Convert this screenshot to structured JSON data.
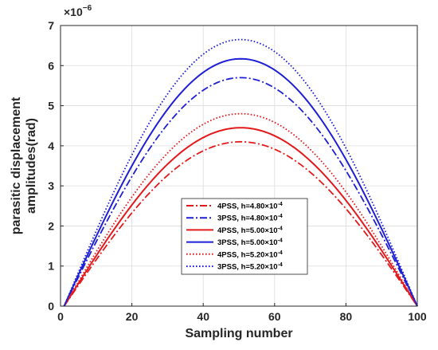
{
  "chart_data": {
    "type": "line",
    "title": "",
    "xlabel": "Sampling number",
    "ylabel_lines": [
      "parasitic displacement",
      "amplitudes(rad)"
    ],
    "y_scale_base": "×10",
    "y_scale_exponent": "−6",
    "xlim": [
      0,
      100
    ],
    "ylim": [
      0,
      7
    ],
    "xticks": [
      0,
      20,
      40,
      60,
      80,
      100
    ],
    "yticks": [
      0,
      1,
      2,
      3,
      4,
      5,
      6,
      7
    ],
    "grid": true,
    "legend_position": "center",
    "x_range": [
      1,
      100
    ],
    "peak_x": 50.5,
    "shape": "half-sine",
    "series": [
      {
        "name": "4PSS, h=4.80×10",
        "exponent": "-4",
        "color": "#e31a1c",
        "dash": "dashdot",
        "peak": 4.1
      },
      {
        "name": "3PSS, h=4.80×10",
        "exponent": "-4",
        "color": "#1f1fd6",
        "dash": "dashdot",
        "peak": 5.7
      },
      {
        "name": "4PSS, h=5.00×10",
        "exponent": "-4",
        "color": "#e31a1c",
        "dash": "solid",
        "peak": 4.45
      },
      {
        "name": "3PSS, h=5.00×10",
        "exponent": "-4",
        "color": "#1f1fd6",
        "dash": "solid",
        "peak": 6.17
      },
      {
        "name": "4PSS, h=5.20×10",
        "exponent": "-4",
        "color": "#e31a1c",
        "dash": "dotted",
        "peak": 4.8
      },
      {
        "name": "3PSS, h=5.20×10",
        "exponent": "-4",
        "color": "#1f1fd6",
        "dash": "dotted",
        "peak": 6.65
      }
    ]
  }
}
